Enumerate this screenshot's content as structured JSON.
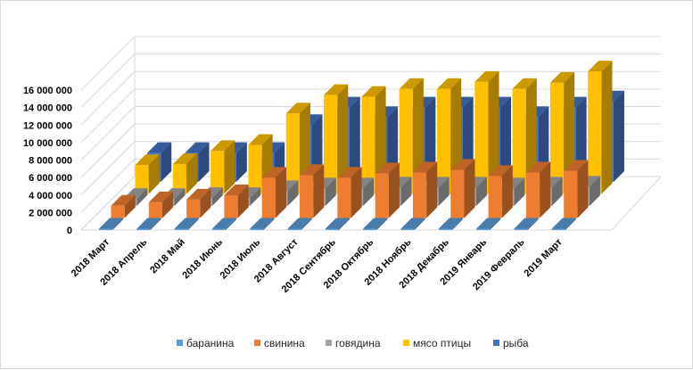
{
  "chart_data": {
    "type": "bar",
    "title": "",
    "xlabel": "",
    "ylabel": "",
    "ylim": [
      0,
      16000000
    ],
    "y_ticks": [
      "0",
      "2 000 000",
      "4 000 000",
      "6 000 000",
      "8 000 000",
      "10 000 000",
      "12 000 000",
      "14 000 000",
      "16 000 000"
    ],
    "categories": [
      "2018 Март",
      "2018 Апрель",
      "2018 Май",
      "2018 Июнь",
      "2018 Июль",
      "2018 Август",
      "2018 Сентябрь",
      "2018 Октябрь",
      "2018 Ноябрь",
      "2018 Декабрь",
      "2019 Январь",
      "2019 Февраль",
      "2019 Март"
    ],
    "grid": true,
    "legend_position": "bottom",
    "series": [
      {
        "name": "баранина",
        "color": "#5b9bd5",
        "values": [
          50000,
          50000,
          50000,
          50000,
          50000,
          50000,
          50000,
          50000,
          50000,
          50000,
          50000,
          50000,
          50000
        ]
      },
      {
        "name": "свинина",
        "color": "#ed7d31",
        "values": [
          1400000,
          1800000,
          2100000,
          2600000,
          4600000,
          4900000,
          4600000,
          5100000,
          5200000,
          5500000,
          4800000,
          5200000,
          5400000
        ]
      },
      {
        "name": "говядина",
        "color": "#a5a5a5",
        "values": [
          800000,
          800000,
          900000,
          900000,
          1700000,
          2000000,
          2000000,
          2100000,
          2100000,
          2100000,
          2000000,
          2100000,
          2200000
        ]
      },
      {
        "name": "мясо птицы",
        "color": "#ffc000",
        "values": [
          3300000,
          3400000,
          4900000,
          5600000,
          9200000,
          11300000,
          11100000,
          12000000,
          12000000,
          12800000,
          12000000,
          12700000,
          14000000
        ]
      },
      {
        "name": "рыба",
        "color": "#4472c4",
        "values": [
          3300000,
          3300000,
          3300000,
          3300000,
          6500000,
          8500000,
          7400000,
          8500000,
          8500000,
          8500000,
          7400000,
          8500000,
          9200000
        ]
      }
    ]
  }
}
